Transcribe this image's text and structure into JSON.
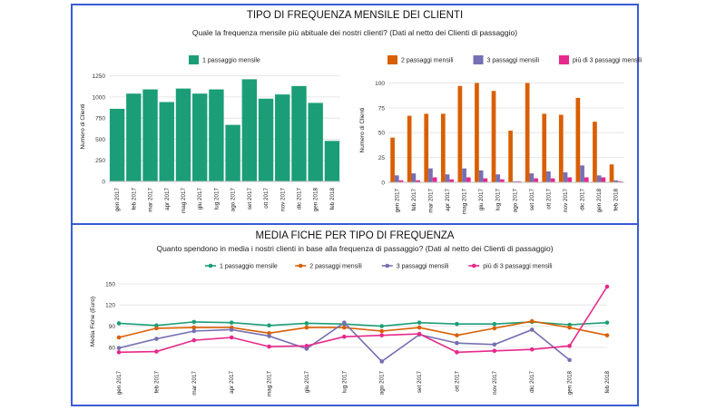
{
  "top": {
    "title": "TIPO DI FREQUENZA MENSILE DEI CLIENTI",
    "subtitle": "Quale la frequenza mensile più abituale dei nostri clienti? (Dati al netto dei Clienti di passaggio)"
  },
  "bottom": {
    "title": "MEDIA FICHE PER TIPO DI FREQUENZA",
    "subtitle": "Quanto spendono in media i nostri clienti in base alla frequenza di passaggio? (Dati al netto dei Clienti di passaggio)"
  },
  "colors": {
    "border": "#3b5bd6",
    "s1": "#1b9e77",
    "s2": "#d95f02",
    "s3": "#7570b3",
    "s4": "#e7298a",
    "grid": "#e6e6e6"
  },
  "chart_data": [
    {
      "type": "bar",
      "categories": [
        "gen 2017",
        "feb 2017",
        "mar 2017",
        "apr 2017",
        "mag 2017",
        "giu 2017",
        "lug 2017",
        "ago 2017",
        "set 2017",
        "ott 2017",
        "nov 2017",
        "dic 2017",
        "gen 2018",
        "feb 2018"
      ],
      "series": [
        {
          "name": "1 passaggio mensile",
          "values": [
            860,
            1040,
            1090,
            940,
            1100,
            1040,
            1090,
            670,
            1210,
            980,
            1030,
            1130,
            930,
            480
          ]
        }
      ],
      "xlabel": "",
      "ylabel": "Numero di Clienti",
      "ylim": [
        0,
        1300
      ],
      "yticks": [
        0,
        250,
        500,
        750,
        1000,
        1250
      ],
      "grid": true,
      "legend": "top"
    },
    {
      "type": "bar",
      "categories": [
        "gen 2017",
        "feb 2017",
        "mar 2017",
        "apr 2017",
        "mag 2017",
        "giu 2017",
        "lug 2017",
        "ago 2017",
        "set 2017",
        "ott 2017",
        "nov 2017",
        "dic 2017",
        "gen 2018",
        "feb 2018"
      ],
      "series": [
        {
          "name": "2 passaggi mensili",
          "values": [
            45,
            67,
            69,
            69,
            97,
            100,
            92,
            52,
            100,
            69,
            68,
            85,
            61,
            18
          ]
        },
        {
          "name": "3 passaggi mensili",
          "values": [
            7,
            9,
            14,
            8,
            14,
            12,
            8,
            1,
            9,
            11,
            10,
            17,
            7,
            2
          ]
        },
        {
          "name": "più di 3 passaggi mensili",
          "values": [
            2,
            2,
            5,
            3,
            5,
            4,
            3,
            1,
            4,
            4,
            5,
            5,
            5,
            1
          ]
        }
      ],
      "xlabel": "",
      "ylabel": "Numero di Clienti",
      "ylim": [
        0,
        105
      ],
      "yticks": [
        0,
        25,
        50,
        75,
        100
      ],
      "grid": true,
      "legend": "top"
    },
    {
      "type": "line",
      "categories": [
        "gen 2017",
        "feb 2017",
        "mar 2017",
        "apr 2017",
        "mag 2017",
        "giu 2017",
        "lug 2017",
        "ago 2017",
        "set 2017",
        "ott 2017",
        "nov 2017",
        "dic 2017",
        "gen 2018",
        "feb 2018"
      ],
      "series": [
        {
          "name": "1 passaggio mensile",
          "values": [
            94,
            91,
            96,
            95,
            91,
            94,
            93,
            90,
            95,
            93,
            93,
            96,
            92,
            95
          ]
        },
        {
          "name": "2 passaggi mensili",
          "values": [
            74,
            87,
            88,
            88,
            80,
            88,
            88,
            83,
            88,
            77,
            87,
            97,
            88,
            77
          ]
        },
        {
          "name": "3 passaggi mensili",
          "values": [
            59,
            72,
            83,
            85,
            76,
            58,
            95,
            40,
            78,
            66,
            64,
            85,
            42,
            null
          ]
        },
        {
          "name": "più di 3 passaggi mensili",
          "values": [
            53,
            54,
            70,
            74,
            61,
            62,
            75,
            77,
            79,
            53,
            55,
            57,
            62,
            146
          ]
        }
      ],
      "xlabel": "",
      "ylabel": "Media Fiche (Euro)",
      "ylim": [
        38,
        155
      ],
      "yticks": [
        60,
        90,
        120,
        150
      ],
      "grid": true,
      "legend": "top"
    }
  ]
}
